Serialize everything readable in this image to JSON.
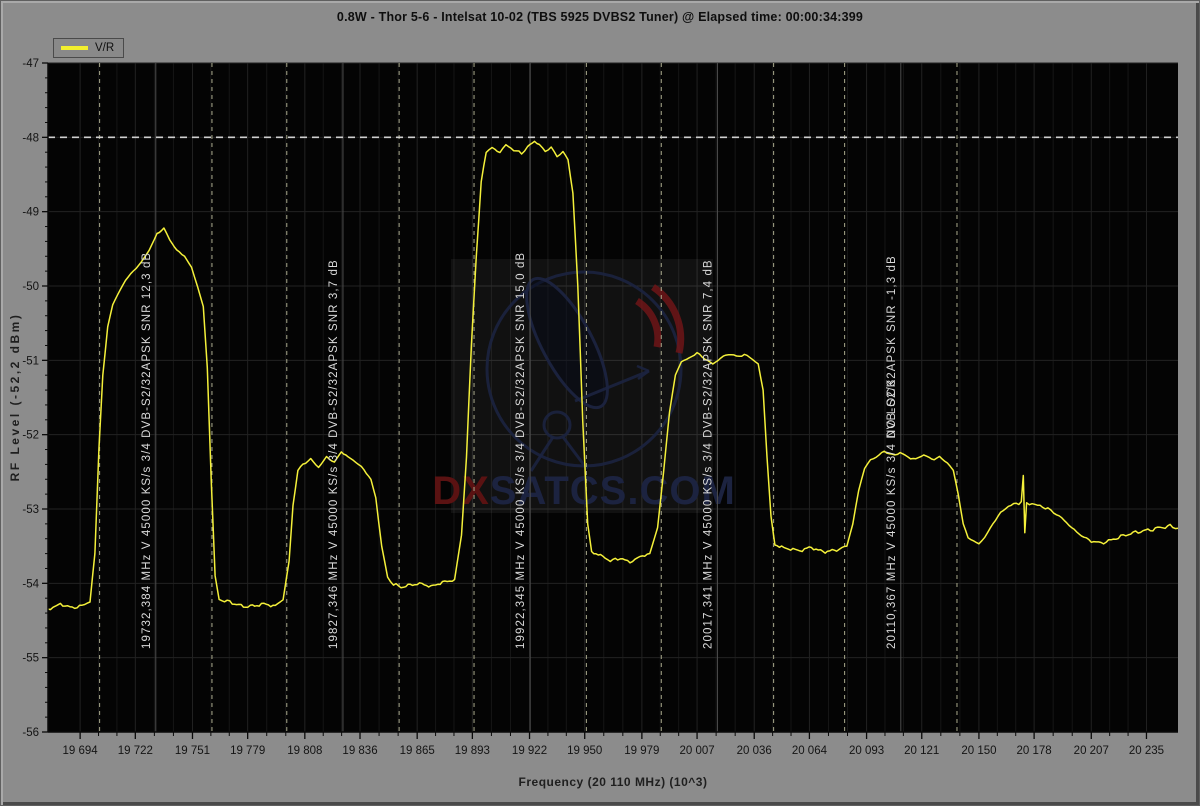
{
  "window": {
    "title": "0.8W - Thor 5-6 - Intelsat 10-02 (TBS 5925 DVBS2 Tuner) @ Elapsed time: 00:00:34:399"
  },
  "legend": {
    "label": "V/R"
  },
  "axes": {
    "y_label": "RF Level (-52,2 dBm)",
    "x_label": "Frequency  (20 110 MHz) (10^3)",
    "y_ticks": [
      -47,
      -48,
      -49,
      -50,
      -51,
      -52,
      -53,
      -54,
      -55,
      -56
    ],
    "x_tick_values": [
      19694,
      19722,
      19751,
      19779,
      19808,
      19836,
      19865,
      19893,
      19922,
      19950,
      19979,
      20007,
      20036,
      20064,
      20093,
      20121,
      20150,
      20178,
      20207,
      20235
    ],
    "x_tick_labels": [
      "19 694",
      "19 722",
      "19 751",
      "19 779",
      "19 808",
      "19 836",
      "19 865",
      "19 893",
      "19 922",
      "19 950",
      "19 979",
      "20 007",
      "20 036",
      "20 064",
      "20 093",
      "20 121",
      "20 150",
      "20 178",
      "20 207",
      "20 235"
    ]
  },
  "watermark": {
    "text_red": "DX",
    "text_blue": "SATCS.COM",
    "color_red": "#5a1212",
    "color_blue": "#1c2340"
  },
  "chart_data": {
    "type": "line",
    "title": "0.8W - Thor 5-6 - Intelsat 10-02 (TBS 5925 DVBS2 Tuner) @ Elapsed time: 00:00:34:399",
    "xlabel": "Frequency  (20 110 MHz) (10^3)",
    "ylabel": "RF Level (-52,2 dBm)",
    "xlim": [
      19677.7,
      20251.0
    ],
    "ylim": [
      -56,
      -47
    ],
    "grid": true,
    "legend_position": "top-left",
    "reference_level_dbm": -48,
    "trace_color": "#f4f03a",
    "series": [
      {
        "name": "V/R",
        "unit": "dBm vs MHz",
        "points": [
          [
            19677.7,
            -54.35
          ],
          [
            19684,
            -54.28
          ],
          [
            19690,
            -54.33
          ],
          [
            19695,
            -54.3
          ],
          [
            19699,
            -54.25
          ],
          [
            19701.5,
            -53.6
          ],
          [
            19703.5,
            -52.2
          ],
          [
            19705.5,
            -51.2
          ],
          [
            19708,
            -50.55
          ],
          [
            19710.5,
            -50.25
          ],
          [
            19713,
            -50.12
          ],
          [
            19717,
            -49.92
          ],
          [
            19721,
            -49.8
          ],
          [
            19725,
            -49.68
          ],
          [
            19729,
            -49.52
          ],
          [
            19733,
            -49.3
          ],
          [
            19736.5,
            -49.22
          ],
          [
            19739.5,
            -49.38
          ],
          [
            19743,
            -49.52
          ],
          [
            19747,
            -49.6
          ],
          [
            19750.5,
            -49.75
          ],
          [
            19753.5,
            -50.0
          ],
          [
            19756.5,
            -50.28
          ],
          [
            19758.5,
            -51.1
          ],
          [
            19760.5,
            -52.6
          ],
          [
            19762.5,
            -53.9
          ],
          [
            19764.5,
            -54.22
          ],
          [
            19770,
            -54.25
          ],
          [
            19778,
            -54.32
          ],
          [
            19786,
            -54.28
          ],
          [
            19793,
            -54.3
          ],
          [
            19797,
            -54.22
          ],
          [
            19800,
            -53.7
          ],
          [
            19802,
            -52.95
          ],
          [
            19804.5,
            -52.48
          ],
          [
            19807,
            -52.4
          ],
          [
            19811,
            -52.33
          ],
          [
            19815,
            -52.44
          ],
          [
            19819,
            -52.3
          ],
          [
            19823,
            -52.37
          ],
          [
            19826.5,
            -52.23
          ],
          [
            19830,
            -52.3
          ],
          [
            19834,
            -52.37
          ],
          [
            19838,
            -52.47
          ],
          [
            19841.5,
            -52.6
          ],
          [
            19844,
            -52.85
          ],
          [
            19847,
            -53.5
          ],
          [
            19850,
            -53.92
          ],
          [
            19853,
            -54.02
          ],
          [
            19858,
            -54.05
          ],
          [
            19865,
            -54.0
          ],
          [
            19872,
            -54.04
          ],
          [
            19879,
            -53.98
          ],
          [
            19884,
            -53.95
          ],
          [
            19887.5,
            -53.35
          ],
          [
            19890,
            -52.3
          ],
          [
            19892.5,
            -50.8
          ],
          [
            19895,
            -49.6
          ],
          [
            19897.5,
            -48.6
          ],
          [
            19900,
            -48.18
          ],
          [
            19903,
            -48.15
          ],
          [
            19907,
            -48.2
          ],
          [
            19910,
            -48.1
          ],
          [
            19914,
            -48.17
          ],
          [
            19918,
            -48.22
          ],
          [
            19921,
            -48.13
          ],
          [
            19924.5,
            -48.05
          ],
          [
            19927,
            -48.1
          ],
          [
            19930,
            -48.19
          ],
          [
            19933,
            -48.13
          ],
          [
            19936,
            -48.26
          ],
          [
            19939,
            -48.19
          ],
          [
            19941.5,
            -48.3
          ],
          [
            19944,
            -48.75
          ],
          [
            19946.5,
            -50.0
          ],
          [
            19949,
            -51.8
          ],
          [
            19951.5,
            -53.2
          ],
          [
            19953.5,
            -53.58
          ],
          [
            19958,
            -53.62
          ],
          [
            19963,
            -53.7
          ],
          [
            19968,
            -53.66
          ],
          [
            19973,
            -53.72
          ],
          [
            19978,
            -53.64
          ],
          [
            19983,
            -53.6
          ],
          [
            19987,
            -53.25
          ],
          [
            19990,
            -52.5
          ],
          [
            19993,
            -51.7
          ],
          [
            19996,
            -51.2
          ],
          [
            19999,
            -51.02
          ],
          [
            20003,
            -50.97
          ],
          [
            20007,
            -50.9
          ],
          [
            20011,
            -50.98
          ],
          [
            20015,
            -51.05
          ],
          [
            20019,
            -50.97
          ],
          [
            20023,
            -50.91
          ],
          [
            20027,
            -50.95
          ],
          [
            20031,
            -50.92
          ],
          [
            20035,
            -50.98
          ],
          [
            20038,
            -51.05
          ],
          [
            20040.5,
            -51.4
          ],
          [
            20042.5,
            -52.3
          ],
          [
            20044.5,
            -53.1
          ],
          [
            20046.5,
            -53.48
          ],
          [
            20051,
            -53.52
          ],
          [
            20058,
            -53.56
          ],
          [
            20065,
            -53.52
          ],
          [
            20072,
            -53.58
          ],
          [
            20079,
            -53.54
          ],
          [
            20083,
            -53.5
          ],
          [
            20086,
            -53.2
          ],
          [
            20089,
            -52.75
          ],
          [
            20092,
            -52.45
          ],
          [
            20095,
            -52.34
          ],
          [
            20098,
            -52.3
          ],
          [
            20102,
            -52.22
          ],
          [
            20106,
            -52.28
          ],
          [
            20110,
            -52.24
          ],
          [
            20114,
            -52.3
          ],
          [
            20118,
            -52.33
          ],
          [
            20122,
            -52.27
          ],
          [
            20126,
            -52.33
          ],
          [
            20130,
            -52.3
          ],
          [
            20134,
            -52.38
          ],
          [
            20137,
            -52.48
          ],
          [
            20139.5,
            -52.8
          ],
          [
            20142,
            -53.2
          ],
          [
            20144.5,
            -53.38
          ],
          [
            20147.5,
            -53.44
          ],
          [
            20150,
            -53.47
          ],
          [
            20153,
            -53.38
          ],
          [
            20157,
            -53.2
          ],
          [
            20161,
            -53.05
          ],
          [
            20165,
            -52.96
          ],
          [
            20169,
            -52.93
          ],
          [
            20171.5,
            -52.9
          ],
          [
            20172.5,
            -52.55
          ],
          [
            20173.3,
            -53.32
          ],
          [
            20174.2,
            -52.92
          ],
          [
            20177,
            -52.93
          ],
          [
            20181,
            -52.96
          ],
          [
            20185,
            -52.99
          ],
          [
            20188,
            -53.05
          ],
          [
            20192,
            -53.12
          ],
          [
            20197,
            -53.25
          ],
          [
            20202,
            -53.36
          ],
          [
            20207,
            -53.43
          ],
          [
            20212,
            -53.46
          ],
          [
            20217,
            -53.42
          ],
          [
            20222,
            -53.37
          ],
          [
            20227,
            -53.33
          ],
          [
            20232,
            -53.3
          ],
          [
            20237,
            -53.28
          ],
          [
            20242,
            -53.25
          ],
          [
            20247,
            -53.23
          ],
          [
            20251,
            -53.26
          ]
        ]
      }
    ],
    "markers": [
      {
        "freq_mhz": 19732.384,
        "span_mhz": 57,
        "snr_db": "12,3",
        "label": "19732,384 MHz V 45000 KS/s 3/4 DVB-S2/32APSK SNR 12,3 dB"
      },
      {
        "freq_mhz": 19827.346,
        "span_mhz": 57,
        "snr_db": "3,7",
        "label": "19827,346 MHz V 45000 KS/s 3/4 DVB-S2/32APSK SNR 3,7 dB"
      },
      {
        "freq_mhz": 19922.345,
        "span_mhz": 57,
        "snr_db": "15,0",
        "label": "19922,345 MHz V 45000 KS/s 3/4 DVB-S2/32APSK SNR 15,0 dB"
      },
      {
        "freq_mhz": 20017.341,
        "span_mhz": 57,
        "snr_db": "7,4",
        "label": "20017,341 MHz V 45000 KS/s 3/4 DVB-S2/32APSK SNR 7,4 dB"
      },
      {
        "freq_mhz": 20110.367,
        "span_mhz": 57,
        "snr_db": "-1,3",
        "label": "20110,367 MHz V 45000 KS/s 3/4 DVB-S2/32APSK SNR -1,3 dB",
        "overlay_label": "NO LOCK"
      }
    ]
  }
}
